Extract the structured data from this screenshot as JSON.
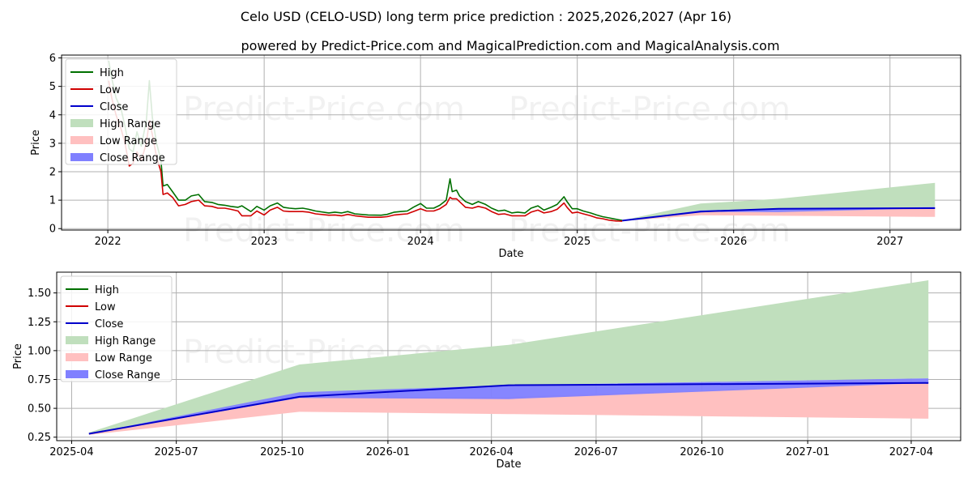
{
  "title": "Celo USD (CELO-USD) long term price prediction : 2025,2026,2027 (Apr 16)",
  "subtitle": "powered by Predict-Price.com and MagicalPrediction.com and MagicalAnalysis.com",
  "watermark": "Predict-Price.com",
  "colors": {
    "high": "#007000",
    "low": "#d00000",
    "close": "#0000cc",
    "high_range": "#c0dfbd",
    "low_range": "#ffc0c0",
    "close_range": "#8080ff"
  },
  "chart_data": [
    {
      "type": "line",
      "xlabel": "Date",
      "ylabel": "Price",
      "xlim": [
        "2021-09-15",
        "2027-06-15"
      ],
      "ylim": [
        -0.05,
        6.1
      ],
      "x_ticks": [
        "2022",
        "2023",
        "2024",
        "2025",
        "2026",
        "2027"
      ],
      "x_tick_dates": [
        "2022-01-01",
        "2023-01-01",
        "2024-01-01",
        "2025-01-01",
        "2026-01-01",
        "2027-01-01"
      ],
      "y_ticks": [
        0,
        1,
        2,
        3,
        4,
        5,
        6
      ],
      "grid": true,
      "legend": "top-left",
      "legend_entries": [
        "High",
        "Low",
        "Close",
        "High Range",
        "Low Range",
        "Close Range"
      ],
      "series": [
        {
          "name": "High",
          "x": [
            "2022-01-03",
            "2022-01-10",
            "2022-01-20",
            "2022-02-01",
            "2022-02-10",
            "2022-02-20",
            "2022-03-01",
            "2022-03-10",
            "2022-03-20",
            "2022-04-01",
            "2022-04-08",
            "2022-04-15",
            "2022-04-25",
            "2022-05-05",
            "2022-05-10",
            "2022-05-20",
            "2022-06-01",
            "2022-06-15",
            "2022-07-01",
            "2022-07-15",
            "2022-08-01",
            "2022-08-15",
            "2022-09-01",
            "2022-09-15",
            "2022-10-01",
            "2022-10-15",
            "2022-11-01",
            "2022-11-10",
            "2022-12-01",
            "2022-12-15",
            "2023-01-01",
            "2023-01-15",
            "2023-02-01",
            "2023-02-15",
            "2023-03-01",
            "2023-03-15",
            "2023-04-01",
            "2023-04-15",
            "2023-05-01",
            "2023-06-01",
            "2023-06-15",
            "2023-07-01",
            "2023-07-15",
            "2023-08-01",
            "2023-09-01",
            "2023-10-01",
            "2023-10-15",
            "2023-11-01",
            "2023-11-15",
            "2023-12-01",
            "2023-12-15",
            "2024-01-01",
            "2024-01-15",
            "2024-02-01",
            "2024-02-15",
            "2024-03-01",
            "2024-03-10",
            "2024-03-15",
            "2024-03-25",
            "2024-04-01",
            "2024-04-15",
            "2024-05-01",
            "2024-05-15",
            "2024-06-01",
            "2024-06-15",
            "2024-07-01",
            "2024-07-15",
            "2024-08-01",
            "2024-08-15",
            "2024-09-01",
            "2024-09-15",
            "2024-10-01",
            "2024-10-15",
            "2024-11-01",
            "2024-11-15",
            "2024-12-01",
            "2024-12-08",
            "2024-12-20",
            "2025-01-01",
            "2025-01-15",
            "2025-02-01",
            "2025-02-15",
            "2025-03-01",
            "2025-03-15",
            "2025-04-01",
            "2025-04-16"
          ],
          "values": [
            5.9,
            5.3,
            4.6,
            4.2,
            3.6,
            2.8,
            2.7,
            3.4,
            2.9,
            3.8,
            5.2,
            3.9,
            3.0,
            2.4,
            1.5,
            1.55,
            1.3,
            1.0,
            1.0,
            1.15,
            1.2,
            0.95,
            0.92,
            0.85,
            0.82,
            0.78,
            0.75,
            0.8,
            0.6,
            0.78,
            0.65,
            0.8,
            0.9,
            0.75,
            0.72,
            0.7,
            0.72,
            0.68,
            0.62,
            0.55,
            0.58,
            0.55,
            0.6,
            0.52,
            0.48,
            0.47,
            0.5,
            0.58,
            0.6,
            0.62,
            0.75,
            0.88,
            0.72,
            0.72,
            0.82,
            1.0,
            1.75,
            1.3,
            1.35,
            1.15,
            0.95,
            0.85,
            0.95,
            0.85,
            0.72,
            0.62,
            0.65,
            0.55,
            0.58,
            0.55,
            0.72,
            0.8,
            0.65,
            0.75,
            0.85,
            1.12,
            0.95,
            0.7,
            0.7,
            0.62,
            0.55,
            0.48,
            0.42,
            0.38,
            0.33,
            0.29
          ]
        },
        {
          "name": "Low",
          "x": [
            "2022-01-03",
            "2022-01-10",
            "2022-01-20",
            "2022-02-01",
            "2022-02-10",
            "2022-02-20",
            "2022-03-01",
            "2022-03-10",
            "2022-03-20",
            "2022-04-01",
            "2022-04-08",
            "2022-04-15",
            "2022-04-25",
            "2022-05-05",
            "2022-05-10",
            "2022-05-20",
            "2022-06-01",
            "2022-06-15",
            "2022-07-01",
            "2022-07-15",
            "2022-08-01",
            "2022-08-15",
            "2022-09-01",
            "2022-09-15",
            "2022-10-01",
            "2022-10-15",
            "2022-11-01",
            "2022-11-10",
            "2022-12-01",
            "2022-12-15",
            "2023-01-01",
            "2023-01-15",
            "2023-02-01",
            "2023-02-15",
            "2023-03-01",
            "2023-03-15",
            "2023-04-01",
            "2023-04-15",
            "2023-05-01",
            "2023-06-01",
            "2023-06-15",
            "2023-07-01",
            "2023-07-15",
            "2023-08-01",
            "2023-09-01",
            "2023-10-01",
            "2023-10-15",
            "2023-11-01",
            "2023-11-15",
            "2023-12-01",
            "2023-12-15",
            "2024-01-01",
            "2024-01-15",
            "2024-02-01",
            "2024-02-15",
            "2024-03-01",
            "2024-03-10",
            "2024-03-15",
            "2024-03-25",
            "2024-04-01",
            "2024-04-15",
            "2024-05-01",
            "2024-05-15",
            "2024-06-01",
            "2024-06-15",
            "2024-07-01",
            "2024-07-15",
            "2024-08-01",
            "2024-08-15",
            "2024-09-01",
            "2024-09-15",
            "2024-10-01",
            "2024-10-15",
            "2024-11-01",
            "2024-11-15",
            "2024-12-01",
            "2024-12-08",
            "2024-12-20",
            "2025-01-01",
            "2025-01-15",
            "2025-02-01",
            "2025-02-15",
            "2025-03-01",
            "2025-03-15",
            "2025-04-01",
            "2025-04-16"
          ],
          "values": [
            5.2,
            4.6,
            4.0,
            3.5,
            3.0,
            2.2,
            2.3,
            2.7,
            2.4,
            3.0,
            3.8,
            3.3,
            2.5,
            2.0,
            1.2,
            1.25,
            1.1,
            0.8,
            0.85,
            0.95,
            1.0,
            0.8,
            0.78,
            0.72,
            0.72,
            0.68,
            0.62,
            0.45,
            0.45,
            0.62,
            0.48,
            0.65,
            0.75,
            0.62,
            0.6,
            0.6,
            0.6,
            0.58,
            0.52,
            0.47,
            0.48,
            0.45,
            0.5,
            0.45,
            0.4,
            0.4,
            0.42,
            0.48,
            0.5,
            0.52,
            0.6,
            0.7,
            0.62,
            0.62,
            0.7,
            0.85,
            1.1,
            1.05,
            1.05,
            0.95,
            0.75,
            0.72,
            0.78,
            0.72,
            0.6,
            0.5,
            0.52,
            0.45,
            0.45,
            0.45,
            0.58,
            0.65,
            0.55,
            0.6,
            0.68,
            0.9,
            0.75,
            0.55,
            0.58,
            0.52,
            0.45,
            0.38,
            0.35,
            0.3,
            0.27,
            0.26
          ]
        },
        {
          "name": "Close",
          "x": [
            "2025-04-16",
            "2025-10-16",
            "2026-04-16",
            "2027-04-16"
          ],
          "values": [
            0.28,
            0.6,
            0.7,
            0.72
          ]
        }
      ],
      "ranges": [
        {
          "name": "High Range",
          "x": [
            "2025-04-16",
            "2025-10-16",
            "2026-04-16",
            "2027-04-16"
          ],
          "upper": [
            0.29,
            0.88,
            1.05,
            1.61
          ],
          "lower": [
            0.28,
            0.62,
            0.7,
            0.76
          ]
        },
        {
          "name": "Low Range",
          "x": [
            "2025-04-16",
            "2025-10-16",
            "2026-04-16",
            "2027-04-16"
          ],
          "upper": [
            0.28,
            0.6,
            0.6,
            0.72
          ],
          "lower": [
            0.27,
            0.47,
            0.45,
            0.41
          ]
        },
        {
          "name": "Close Range",
          "x": [
            "2025-04-16",
            "2025-10-16",
            "2026-04-16",
            "2027-04-16"
          ],
          "upper": [
            0.28,
            0.64,
            0.7,
            0.76
          ],
          "lower": [
            0.28,
            0.59,
            0.58,
            0.72
          ]
        }
      ]
    },
    {
      "type": "line",
      "xlabel": "Date",
      "ylabel": "Price",
      "xlim": [
        "2025-03-19",
        "2027-05-14"
      ],
      "ylim": [
        0.22,
        1.68
      ],
      "x_ticks": [
        "2025-04",
        "2025-07",
        "2025-10",
        "2026-01",
        "2026-04",
        "2026-07",
        "2026-10",
        "2027-01",
        "2027-04"
      ],
      "x_tick_dates": [
        "2025-04-01",
        "2025-07-01",
        "2025-10-01",
        "2026-01-01",
        "2026-04-01",
        "2026-07-01",
        "2026-10-01",
        "2027-01-01",
        "2027-04-01"
      ],
      "y_ticks": [
        "0.25",
        "0.50",
        "0.75",
        "1.00",
        "1.25",
        "1.50"
      ],
      "grid": true,
      "legend": "top-left",
      "legend_entries": [
        "High",
        "Low",
        "Close",
        "High Range",
        "Low Range",
        "Close Range"
      ],
      "series": [
        {
          "name": "Close",
          "x": [
            "2025-04-16",
            "2025-10-16",
            "2026-04-16",
            "2027-04-16"
          ],
          "values": [
            0.28,
            0.6,
            0.7,
            0.72
          ]
        }
      ],
      "ranges": [
        {
          "name": "High Range",
          "x": [
            "2025-04-16",
            "2025-10-16",
            "2026-04-16",
            "2027-04-16"
          ],
          "upper": [
            0.29,
            0.88,
            1.05,
            1.61
          ],
          "lower": [
            0.28,
            0.62,
            0.7,
            0.76
          ]
        },
        {
          "name": "Low Range",
          "x": [
            "2025-04-16",
            "2025-10-16",
            "2026-04-16",
            "2027-04-16"
          ],
          "upper": [
            0.28,
            0.6,
            0.6,
            0.72
          ],
          "lower": [
            0.27,
            0.47,
            0.45,
            0.41
          ]
        },
        {
          "name": "Close Range",
          "x": [
            "2025-04-16",
            "2025-10-16",
            "2026-04-16",
            "2027-04-16"
          ],
          "upper": [
            0.28,
            0.64,
            0.7,
            0.76
          ],
          "lower": [
            0.28,
            0.59,
            0.58,
            0.72
          ]
        }
      ]
    }
  ]
}
